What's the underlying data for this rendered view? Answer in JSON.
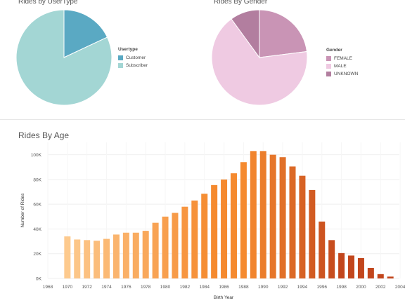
{
  "chart_data": [
    {
      "type": "pie",
      "title": "Rides by UserType",
      "legend_title": "Usertype",
      "legend_position": "right",
      "slices": [
        {
          "label": "Customer",
          "value": 18,
          "color": "#5aa9c3"
        },
        {
          "label": "Subscriber",
          "value": 82,
          "color": "#a3d6d4"
        }
      ]
    },
    {
      "type": "pie",
      "title": "Rides By Gender",
      "legend_title": "Gender",
      "legend_position": "right",
      "slices": [
        {
          "label": "FEMALE",
          "value": 23,
          "color": "#c994b5"
        },
        {
          "label": "MALE",
          "value": 67,
          "color": "#efcae2"
        },
        {
          "label": "UNKNOWN",
          "value": 10,
          "color": "#b27e9f"
        }
      ]
    },
    {
      "type": "bar",
      "title": "Rides By Age",
      "xlabel": "Birth Year",
      "ylabel": "Number of Rides",
      "ylim": [
        0,
        110000
      ],
      "y_ticks": [
        "0K",
        "20K",
        "40K",
        "60K",
        "80K",
        "100K"
      ],
      "x_ticks": [
        "1968",
        "1970",
        "1972",
        "1974",
        "1976",
        "1978",
        "1980",
        "1982",
        "1984",
        "1986",
        "1988",
        "1990",
        "1992",
        "1994",
        "1996",
        "1998",
        "2000",
        "2002",
        "2004"
      ],
      "grid": true,
      "color_scale": [
        "#fdca8e",
        "#f58a2f",
        "#c2461c"
      ],
      "categories": [
        "1970",
        "1971",
        "1972",
        "1973",
        "1974",
        "1975",
        "1976",
        "1977",
        "1978",
        "1979",
        "1980",
        "1981",
        "1982",
        "1983",
        "1984",
        "1985",
        "1986",
        "1987",
        "1988",
        "1989",
        "1990",
        "1991",
        "1992",
        "1993",
        "1994",
        "1995",
        "1996",
        "1997",
        "1998",
        "1999",
        "2000",
        "2001",
        "2002",
        "2003"
      ],
      "values": [
        34000,
        31500,
        31000,
        30500,
        32000,
        35500,
        37000,
        37000,
        38500,
        45000,
        50000,
        53000,
        58000,
        63000,
        68500,
        75500,
        80000,
        85000,
        94000,
        103000,
        103000,
        100000,
        98000,
        90500,
        83000,
        71500,
        46000,
        31000,
        20500,
        18500,
        16500,
        8500,
        3500,
        1500
      ]
    }
  ]
}
